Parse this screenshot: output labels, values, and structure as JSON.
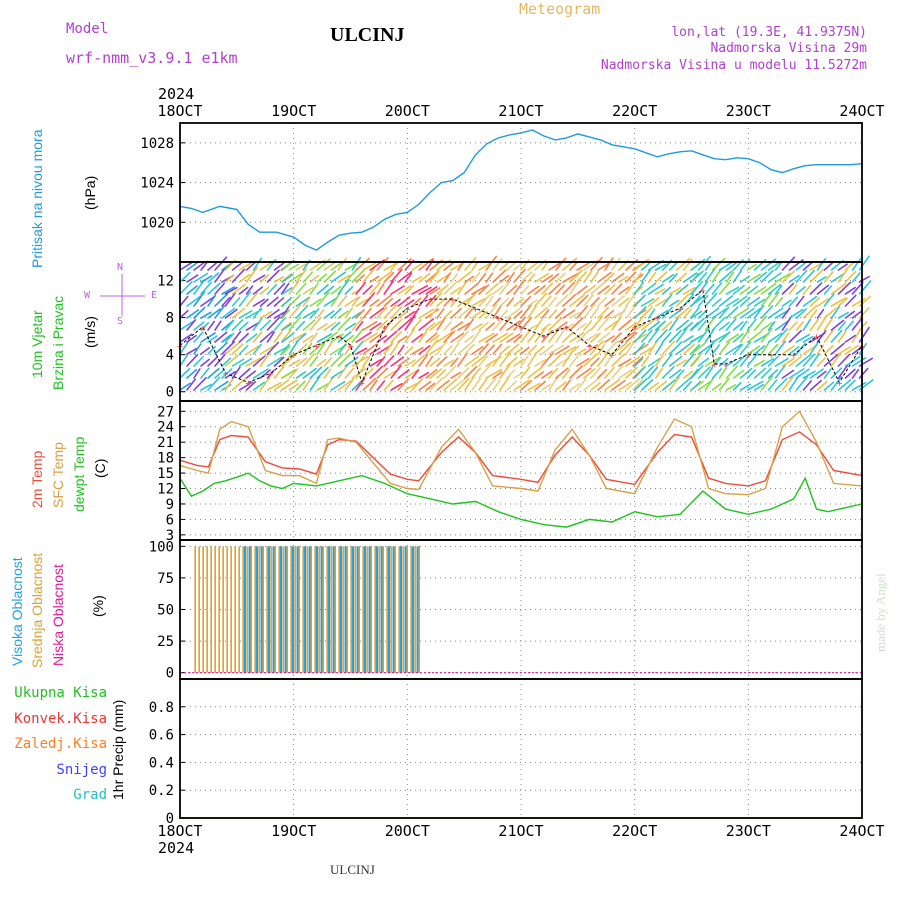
{
  "header": {
    "model_label": "Model",
    "model_name": "wrf-nmm_v3.9.1  e1km",
    "station": "ULCINJ",
    "product": "Meteogram",
    "coords": "lon,lat (19.3E, 41.9375N)",
    "elevation": "Nadmorska Visina 29m",
    "model_elevation": "Nadmorska Visina u modelu 11.5272m"
  },
  "footer": {
    "station": "ULCINJ",
    "watermark": "made by Angel"
  },
  "x_axis": {
    "year": "2024",
    "ticks": [
      "18OCT",
      "19OCT",
      "20OCT",
      "21OCT",
      "22OCT",
      "23OCT",
      "24OCT"
    ],
    "range_days": [
      0,
      6
    ]
  },
  "colors": {
    "pressure": "#1e9be0",
    "wind_speed": "#000000",
    "temp2m": "#f04a3a",
    "sfc_temp": "#d9a046",
    "dewpoint": "#1ec41e",
    "high_cloud": "#22a0e8",
    "mid_cloud": "#e0a030",
    "low_cloud": "#e0189a",
    "total_precip": "#22c022",
    "conv_precip": "#ee3333",
    "frozen_precip": "#ff7f24",
    "snow": "#4040ff",
    "hail": "#22c0c0",
    "model_text": "#b040d0",
    "product_text": "#e8b860",
    "wind_legend": "#c060e0"
  },
  "panels": {
    "pressure": {
      "ylabel": "Pritisak na nivou mora",
      "unit": "(hPa)"
    },
    "wind": {
      "ylabel1": "10m Vjetar",
      "ylabel2": "Brzina i Pravac",
      "unit": "(m/s)",
      "compass_n": "N",
      "compass_e": "E",
      "compass_w": "W",
      "compass_s": "S"
    },
    "temp": {
      "ylabel_2m": "2m Temp",
      "ylabel_sfc": "SFC Temp",
      "ylabel_dew": "dewpt Temp",
      "unit": "(C)"
    },
    "cloud": {
      "ylabel_high": "Visoka Oblacnost",
      "ylabel_mid": "Srednja Oblacnost",
      "ylabel_low": "Niska Oblacnost",
      "unit": "(%)"
    },
    "precip": {
      "legend_total": "Ukupna Kisa",
      "legend_conv": "Konvek.Kisa",
      "legend_frozen": "Zaledj.Kisa",
      "legend_snow": "Snijeg",
      "legend_hail": "Grad",
      "ylabel": "1hr Precip (mm)"
    }
  },
  "chart_data": [
    {
      "type": "line",
      "panel": "pressure",
      "ylim": [
        1016,
        1030
      ],
      "yticks": [
        1020,
        1024,
        1028
      ],
      "grid": true,
      "series": [
        {
          "x": [
            0,
            0.1,
            0.2,
            0.35,
            0.5,
            0.6,
            0.7,
            0.85,
            1.0,
            1.1,
            1.2,
            1.3,
            1.4,
            1.5,
            1.6,
            1.7,
            1.8,
            1.9,
            2.0,
            2.1,
            2.2,
            2.3,
            2.4,
            2.5,
            2.6,
            2.7,
            2.8,
            2.9,
            3.0,
            3.1,
            3.2,
            3.3,
            3.4,
            3.5,
            3.6,
            3.7,
            3.8,
            3.9,
            4.0,
            4.1,
            4.2,
            4.3,
            4.4,
            4.5,
            4.6,
            4.7,
            4.8,
            4.9,
            5.0,
            5.1,
            5.2,
            5.3,
            5.4,
            5.5,
            5.6,
            5.7,
            5.8,
            5.9,
            6.0
          ],
          "values": [
            1021.6,
            1021.4,
            1021.0,
            1021.6,
            1021.3,
            1019.8,
            1019.0,
            1019.0,
            1018.5,
            1017.7,
            1017.2,
            1018.0,
            1018.7,
            1018.9,
            1019.0,
            1019.5,
            1020.3,
            1020.8,
            1021.0,
            1021.8,
            1023.0,
            1024.0,
            1024.2,
            1025.0,
            1026.8,
            1027.9,
            1028.5,
            1028.8,
            1029.0,
            1029.3,
            1028.7,
            1028.3,
            1028.5,
            1028.9,
            1028.6,
            1028.3,
            1027.8,
            1027.6,
            1027.4,
            1027.0,
            1026.6,
            1026.9,
            1027.1,
            1027.2,
            1026.8,
            1026.4,
            1026.3,
            1026.5,
            1026.4,
            1026.0,
            1025.3,
            1025.0,
            1025.4,
            1025.7,
            1025.8,
            1025.8,
            1025.8,
            1025.8,
            1025.9
          ]
        }
      ]
    },
    {
      "type": "line",
      "panel": "wind",
      "ylim": [
        -1,
        14
      ],
      "yticks": [
        0,
        4,
        8,
        12
      ],
      "grid": true,
      "series": [
        {
          "x": [
            0,
            0.2,
            0.4,
            0.6,
            0.8,
            1.0,
            1.2,
            1.4,
            1.5,
            1.6,
            1.8,
            2.0,
            2.2,
            2.4,
            2.6,
            2.8,
            3.0,
            3.2,
            3.4,
            3.6,
            3.8,
            4.0,
            4.2,
            4.4,
            4.6,
            4.7,
            4.8,
            5.0,
            5.2,
            5.4,
            5.6,
            5.8,
            6.0
          ],
          "values": [
            5,
            7,
            2,
            1,
            2,
            4,
            5,
            6,
            5,
            1,
            7,
            9,
            10,
            10,
            9,
            8,
            7,
            6,
            7,
            5,
            4,
            7,
            8,
            9,
            11,
            3,
            3,
            4,
            4,
            4,
            6,
            1,
            5
          ]
        }
      ]
    },
    {
      "type": "line",
      "panel": "temp",
      "ylim": [
        2,
        29
      ],
      "yticks": [
        3,
        6,
        9,
        12,
        15,
        18,
        21,
        24,
        27
      ],
      "grid": true,
      "series": [
        {
          "name": "2m Temp",
          "x": [
            0,
            0.15,
            0.25,
            0.35,
            0.45,
            0.6,
            0.75,
            0.9,
            1.05,
            1.2,
            1.3,
            1.4,
            1.55,
            1.7,
            1.85,
            2.0,
            2.1,
            2.3,
            2.45,
            2.6,
            2.75,
            3.0,
            3.15,
            3.3,
            3.45,
            3.6,
            3.75,
            4.0,
            4.2,
            4.35,
            4.5,
            4.65,
            4.8,
            5.0,
            5.15,
            5.3,
            5.45,
            5.6,
            5.75,
            6.0
          ],
          "values": [
            17.5,
            16.5,
            16.2,
            21.5,
            22.3,
            22.0,
            17.2,
            16.0,
            15.8,
            14.8,
            20.5,
            21.5,
            21.2,
            18.0,
            14.8,
            13.8,
            13.5,
            19.0,
            22.0,
            19.0,
            14.5,
            13.8,
            13.2,
            18.5,
            22.0,
            18.5,
            13.8,
            12.8,
            19.0,
            22.5,
            22.0,
            14.0,
            13.0,
            12.5,
            13.5,
            21.5,
            23.0,
            20.5,
            15.5,
            14.5
          ]
        },
        {
          "name": "SFC Temp",
          "x": [
            0,
            0.15,
            0.25,
            0.35,
            0.45,
            0.6,
            0.75,
            0.9,
            1.05,
            1.2,
            1.3,
            1.4,
            1.55,
            1.7,
            1.85,
            2.0,
            2.1,
            2.3,
            2.45,
            2.6,
            2.75,
            3.0,
            3.15,
            3.3,
            3.45,
            3.6,
            3.75,
            4.0,
            4.2,
            4.35,
            4.5,
            4.65,
            4.8,
            5.0,
            5.15,
            5.3,
            5.45,
            5.6,
            5.75,
            6.0
          ],
          "values": [
            16.5,
            15.5,
            15.0,
            23.5,
            25.0,
            24.0,
            15.5,
            14.5,
            14.5,
            13.0,
            21.5,
            21.8,
            21.0,
            17.0,
            13.0,
            12.0,
            11.8,
            20.0,
            23.5,
            19.0,
            12.5,
            12.0,
            11.5,
            19.5,
            23.5,
            18.5,
            12.0,
            11.0,
            20.0,
            25.5,
            24.0,
            12.0,
            11.0,
            10.8,
            12.0,
            24.0,
            27.0,
            21.0,
            13.0,
            12.5
          ]
        },
        {
          "name": "dewpt Temp",
          "x": [
            0,
            0.1,
            0.2,
            0.3,
            0.4,
            0.5,
            0.6,
            0.7,
            0.8,
            0.9,
            1.0,
            1.2,
            1.4,
            1.6,
            1.8,
            2.0,
            2.2,
            2.4,
            2.6,
            2.8,
            3.0,
            3.2,
            3.4,
            3.6,
            3.8,
            4.0,
            4.2,
            4.4,
            4.6,
            4.8,
            5.0,
            5.2,
            5.3,
            5.4,
            5.5,
            5.6,
            5.7,
            5.8,
            6.0
          ],
          "values": [
            14.0,
            10.5,
            11.5,
            13.0,
            13.5,
            14.2,
            15.0,
            13.5,
            12.5,
            12.0,
            13.0,
            12.5,
            13.5,
            14.5,
            13.0,
            11.0,
            10.0,
            9.0,
            9.5,
            7.5,
            6.0,
            5.0,
            4.5,
            6.0,
            5.5,
            7.5,
            6.5,
            7.0,
            11.5,
            8.0,
            7.0,
            8.0,
            9.0,
            10.0,
            14.0,
            8.0,
            7.5,
            8.0,
            9.0
          ]
        }
      ]
    },
    {
      "type": "bar",
      "panel": "cloud",
      "ylim": [
        -5,
        105
      ],
      "yticks": [
        0,
        25,
        50,
        75,
        100
      ],
      "grid": true,
      "series": [
        {
          "name": "Visoka Oblacnost",
          "x_start": 0.55,
          "x_end": 2.1,
          "values": 100
        },
        {
          "name": "Srednja Oblacnost",
          "x_start": 0.1,
          "x_end": 2.1,
          "values": 100
        },
        {
          "name": "Niska Oblacnost",
          "x_start": 0,
          "x_end": 6,
          "values": 0
        }
      ]
    },
    {
      "type": "line",
      "panel": "precip",
      "ylim": [
        0,
        1
      ],
      "yticks": [
        0,
        0.2,
        0.4,
        0.6,
        0.8
      ],
      "grid": true,
      "series": [
        {
          "name": "Ukupna Kisa",
          "x": [
            0,
            6
          ],
          "values": [
            0,
            0
          ]
        }
      ]
    }
  ]
}
